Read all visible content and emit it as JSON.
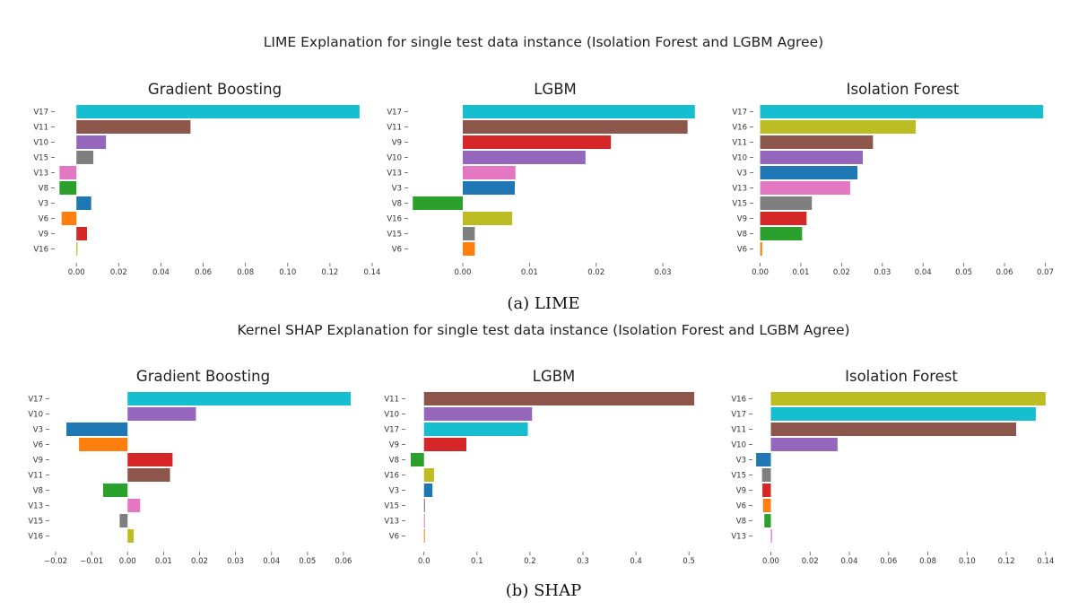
{
  "lime": {
    "section_title": "LIME Explanation for single test data instance (Isolation Forest and LGBM Agree)",
    "caption": "(a) LIME"
  },
  "shap": {
    "section_title": "Kernel SHAP Explanation for single test data instance (Isolation Forest and LGBM Agree)",
    "caption": "(b) SHAP"
  },
  "colors": {
    "V17": "#17becf",
    "V11": "#8c564b",
    "V10": "#9467bd",
    "V15": "#7f7f7f",
    "V13": "#e377c2",
    "V8": "#2ca02c",
    "V3": "#1f77b4",
    "V6": "#ff7f0e",
    "V9": "#d62728",
    "V16": "#bcbd22"
  },
  "chart_data": [
    {
      "type": "bar",
      "orientation": "horizontal",
      "group": "lime",
      "title": "Gradient Boosting",
      "categories": [
        "V17",
        "V11",
        "V10",
        "V15",
        "V13",
        "V8",
        "V3",
        "V6",
        "V9",
        "V16"
      ],
      "values": [
        0.134,
        0.054,
        0.014,
        0.008,
        -0.008,
        -0.008,
        0.007,
        -0.007,
        0.005,
        0.0005
      ],
      "xlim": [
        -0.009,
        0.14
      ],
      "xticks": [
        0.0,
        0.02,
        0.04,
        0.06,
        0.08,
        0.1,
        0.12,
        0.14
      ],
      "xtick_labels": [
        "0.00",
        "0.02",
        "0.04",
        "0.06",
        "0.08",
        "0.10",
        "0.12",
        "0.14"
      ]
    },
    {
      "type": "bar",
      "orientation": "horizontal",
      "group": "lime",
      "title": "LGBM",
      "categories": [
        "V17",
        "V11",
        "V9",
        "V10",
        "V13",
        "V3",
        "V8",
        "V16",
        "V15",
        "V6"
      ],
      "values": [
        0.0348,
        0.0337,
        0.0222,
        0.0184,
        0.0079,
        0.0078,
        -0.0075,
        0.0074,
        0.0018,
        0.0018
      ],
      "xlim": [
        -0.0078,
        0.0355
      ],
      "xticks": [
        0.0,
        0.01,
        0.02,
        0.03
      ],
      "xtick_labels": [
        "0.00",
        "0.01",
        "0.02",
        "0.03"
      ]
    },
    {
      "type": "bar",
      "orientation": "horizontal",
      "group": "lime",
      "title": "Isolation Forest",
      "categories": [
        "V17",
        "V16",
        "V11",
        "V10",
        "V3",
        "V13",
        "V15",
        "V9",
        "V8",
        "V6"
      ],
      "values": [
        0.0695,
        0.0382,
        0.0277,
        0.0252,
        0.0239,
        0.0221,
        0.0127,
        0.0114,
        0.0103,
        0.0005
      ],
      "xlim": [
        -0.001,
        0.071
      ],
      "xticks": [
        0.0,
        0.01,
        0.02,
        0.03,
        0.04,
        0.05,
        0.06,
        0.07
      ],
      "xtick_labels": [
        "0.00",
        "0.01",
        "0.02",
        "0.03",
        "0.04",
        "0.05",
        "0.06",
        "0.07"
      ]
    },
    {
      "type": "bar",
      "orientation": "horizontal",
      "group": "shap",
      "title": "Gradient Boosting",
      "categories": [
        "V17",
        "V10",
        "V3",
        "V6",
        "V9",
        "V11",
        "V8",
        "V13",
        "V15",
        "V16"
      ],
      "values": [
        0.062,
        0.019,
        -0.017,
        -0.0135,
        0.0125,
        0.0118,
        -0.0068,
        0.0035,
        -0.0022,
        0.0017
      ],
      "xlim": [
        -0.021,
        0.063
      ],
      "xticks": [
        -0.02,
        -0.01,
        0.0,
        0.01,
        0.02,
        0.03,
        0.04,
        0.05,
        0.06
      ],
      "xtick_labels": [
        "−0.02",
        "−0.01",
        "0.00",
        "0.01",
        "0.02",
        "0.03",
        "0.04",
        "0.05",
        "0.06"
      ]
    },
    {
      "type": "bar",
      "orientation": "horizontal",
      "group": "shap",
      "title": "LGBM",
      "categories": [
        "V11",
        "V10",
        "V17",
        "V9",
        "V8",
        "V16",
        "V3",
        "V15",
        "V13",
        "V6"
      ],
      "values": [
        0.51,
        0.204,
        0.196,
        0.08,
        -0.025,
        0.019,
        0.016,
        0.002,
        0.0015,
        0.001
      ],
      "xlim": [
        -0.03,
        0.52
      ],
      "xticks": [
        0.0,
        0.1,
        0.2,
        0.3,
        0.4,
        0.5
      ],
      "xtick_labels": [
        "0.0",
        "0.1",
        "0.2",
        "0.3",
        "0.4",
        "0.5"
      ]
    },
    {
      "type": "bar",
      "orientation": "horizontal",
      "group": "shap",
      "title": "Isolation Forest",
      "categories": [
        "V16",
        "V17",
        "V11",
        "V10",
        "V3",
        "V15",
        "V9",
        "V6",
        "V8",
        "V13"
      ],
      "values": [
        0.14,
        0.135,
        0.125,
        0.034,
        -0.0075,
        -0.0045,
        -0.0043,
        -0.004,
        -0.0033,
        0.0006
      ],
      "xlim": [
        -0.008,
        0.141
      ],
      "xticks": [
        0.0,
        0.02,
        0.04,
        0.06,
        0.08,
        0.1,
        0.12,
        0.14
      ],
      "xtick_labels": [
        "0.00",
        "0.02",
        "0.04",
        "0.06",
        "0.08",
        "0.10",
        "0.12",
        "0.14"
      ]
    }
  ]
}
